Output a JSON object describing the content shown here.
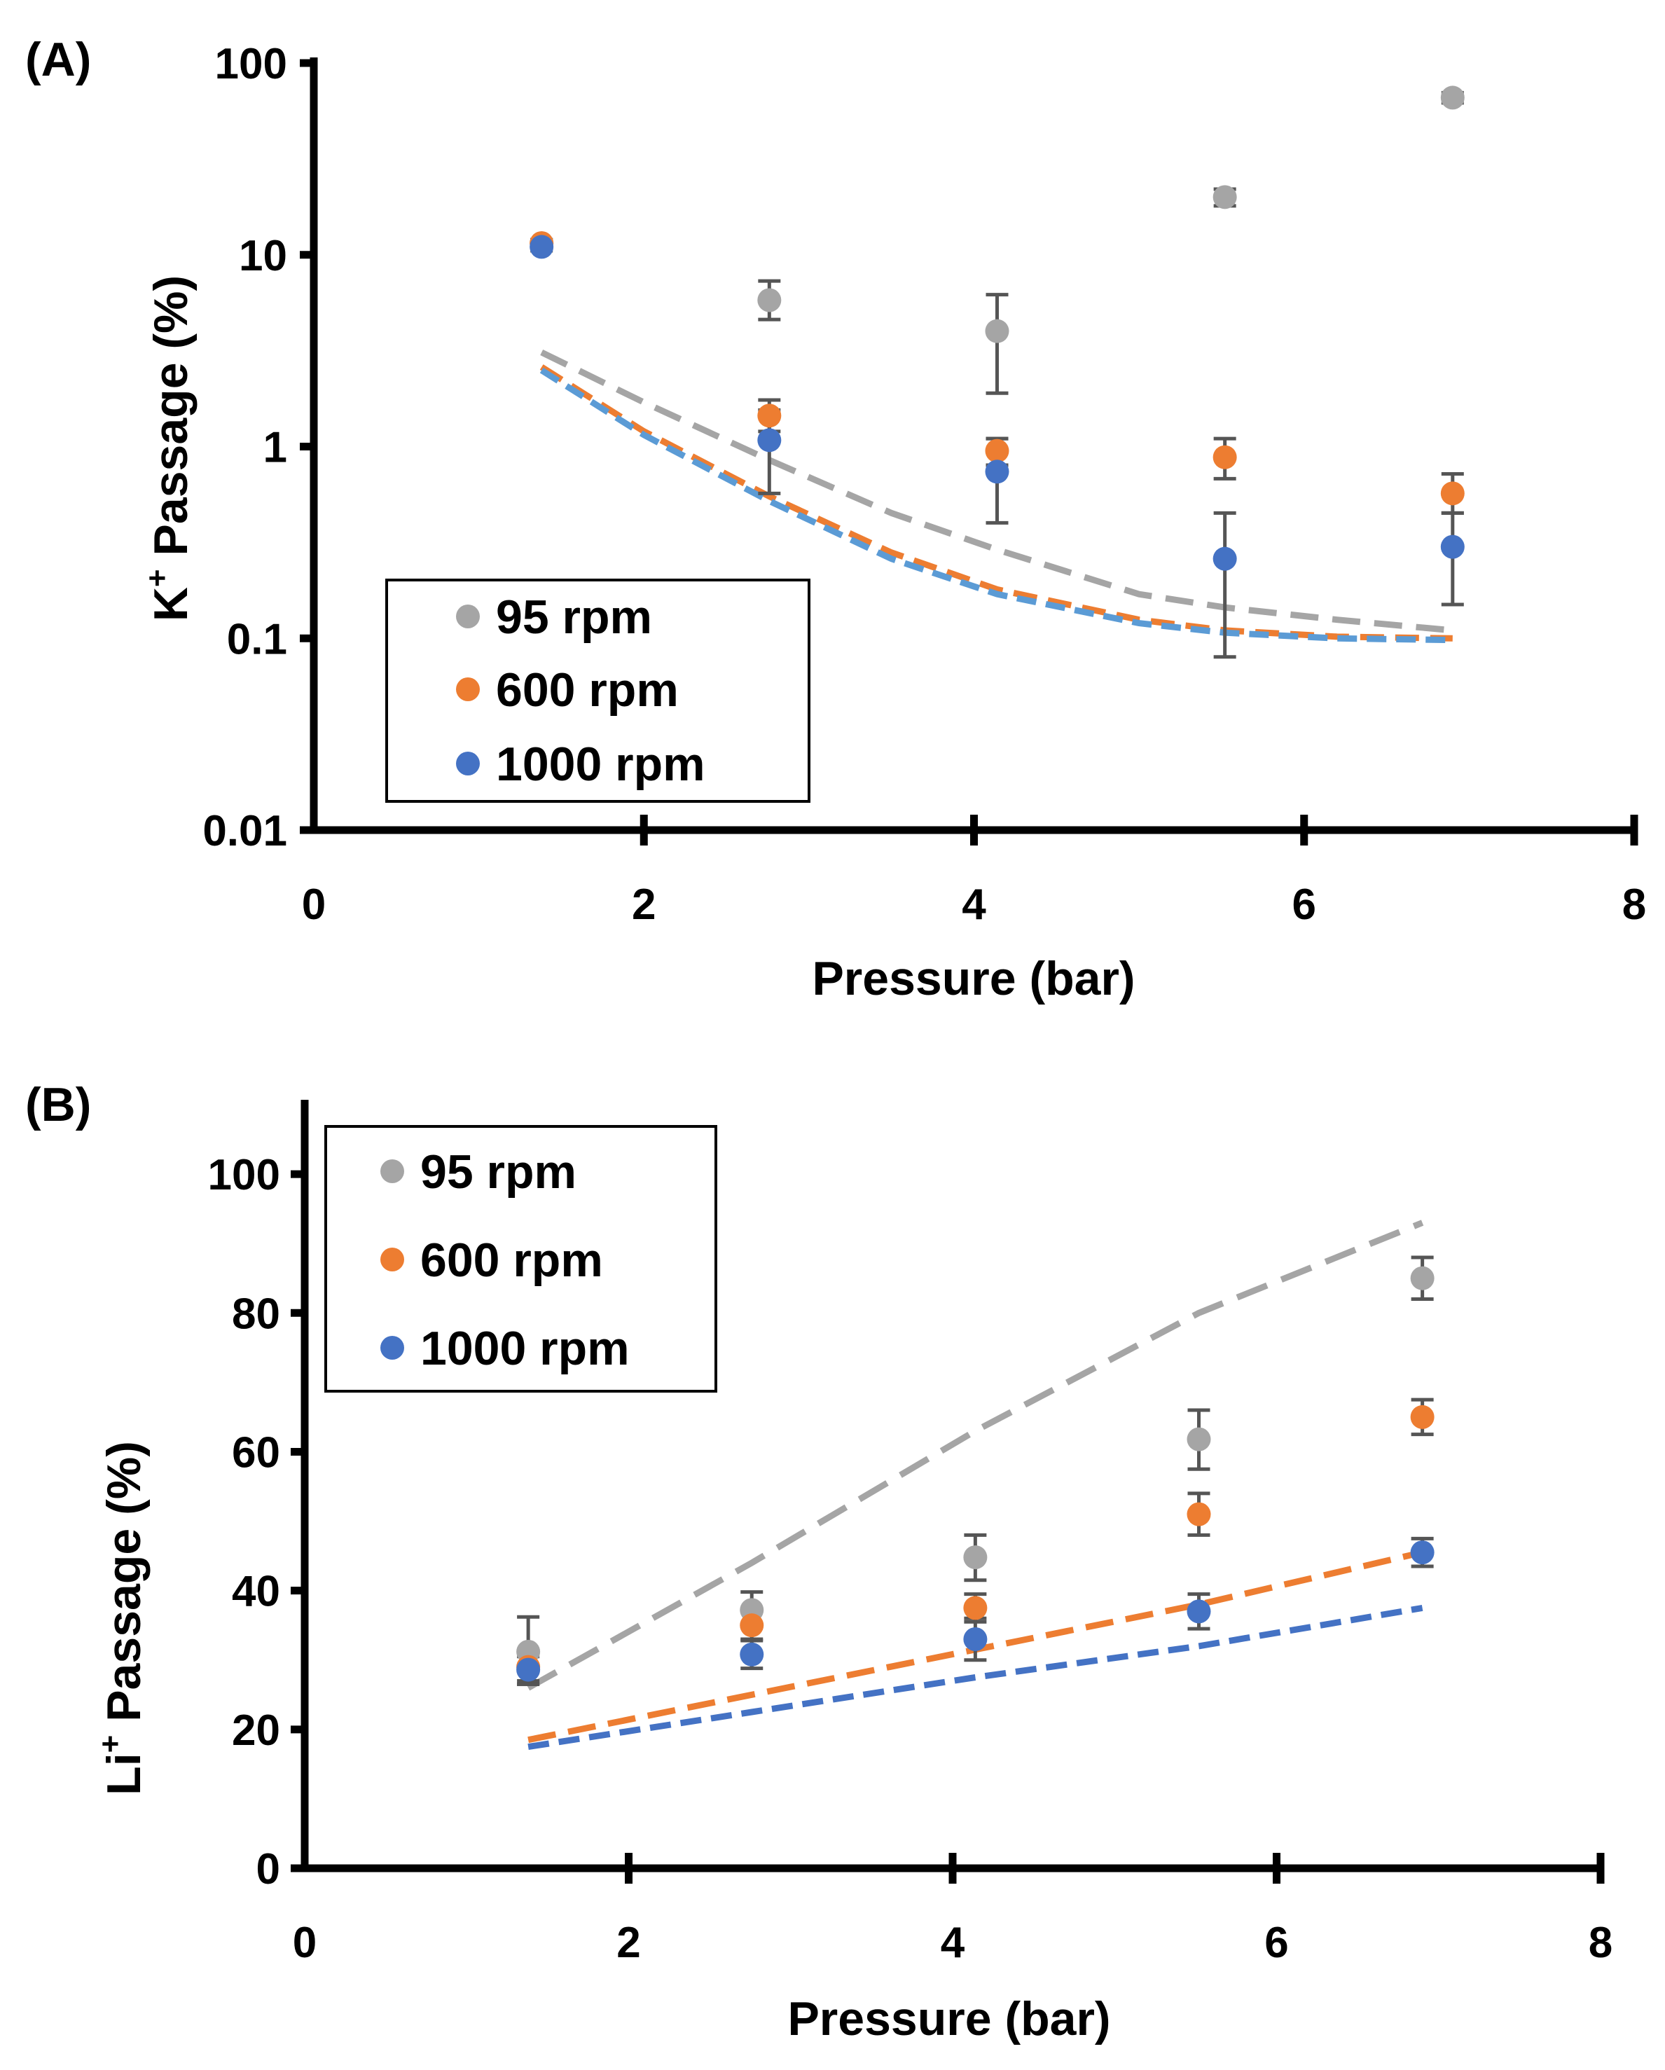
{
  "colors": {
    "gray": "#A5A5A5",
    "orange": "#ED7D31",
    "blue": "#4472C4",
    "light_blue": "#5B9BD5",
    "axis": "#000000",
    "errorbar": "#555555"
  },
  "chart_data": [
    {
      "panel_label": "(A)",
      "type": "scatter",
      "xlabel": "Pressure (bar)",
      "ylabel_main": "K",
      "ylabel_sup": "+",
      "ylabel_rest": " Passage (%)",
      "yscale": "log",
      "xlim": [
        0,
        8
      ],
      "ylim": [
        0.01,
        100
      ],
      "xticks": [
        0,
        2,
        4,
        6,
        8
      ],
      "xtick_labels": [
        "0",
        "2",
        "4",
        "6",
        "8"
      ],
      "yticks": [
        0.01,
        0.1,
        1,
        10,
        100
      ],
      "ytick_labels": [
        "0.01",
        "0.1",
        "1",
        "10",
        "100"
      ],
      "legend_location": "lower-left",
      "legend_labels": [
        "95 rpm",
        "600 rpm",
        "1000 rpm"
      ],
      "series": [
        {
          "name": "95 rpm",
          "color_key": "gray",
          "x": [
            1.38,
            2.76,
            4.14,
            5.52,
            6.9
          ],
          "y": [
            11.5,
            5.8,
            4.0,
            20.0,
            66.0
          ],
          "err_low": [
            11.0,
            4.6,
            1.9,
            18.0,
            62.0
          ],
          "err_high": [
            12.0,
            7.3,
            6.2,
            22.0,
            70.0
          ]
        },
        {
          "name": "600 rpm",
          "color_key": "orange",
          "x": [
            1.38,
            2.76,
            4.14,
            5.52,
            6.9
          ],
          "y": [
            11.5,
            1.45,
            0.95,
            0.88,
            0.57
          ],
          "err_low": [
            11.0,
            1.2,
            0.8,
            0.68,
            0.45
          ],
          "err_high": [
            12.0,
            1.75,
            1.1,
            1.1,
            0.72
          ]
        },
        {
          "name": "1000 rpm",
          "color_key": "blue",
          "x": [
            1.38,
            2.76,
            4.14,
            5.52,
            6.9
          ],
          "y": [
            11.0,
            1.08,
            0.74,
            0.26,
            0.3
          ],
          "err_low": [
            10.5,
            0.57,
            0.4,
            0.08,
            0.15
          ],
          "err_high": [
            11.5,
            1.55,
            1.1,
            0.45,
            0.45
          ]
        }
      ],
      "model_lines": [
        {
          "name": "95 rpm model",
          "color_key": "gray",
          "dash": "40 20",
          "x": [
            1.38,
            2.0,
            2.76,
            3.5,
            4.14,
            5.0,
            5.52,
            6.2,
            6.9
          ],
          "y": [
            3.1,
            1.7,
            0.85,
            0.45,
            0.29,
            0.17,
            0.145,
            0.125,
            0.11
          ]
        },
        {
          "name": "600 rpm model",
          "color_key": "orange",
          "dash": "34 16",
          "x": [
            1.38,
            2.0,
            2.76,
            3.5,
            4.14,
            5.0,
            5.52,
            6.2,
            6.9
          ],
          "y": [
            2.6,
            1.2,
            0.55,
            0.28,
            0.18,
            0.125,
            0.11,
            0.102,
            0.1
          ]
        },
        {
          "name": "1000 rpm model",
          "color_key": "light_blue",
          "dash": "28 14",
          "x": [
            1.38,
            2.0,
            2.76,
            3.5,
            4.14,
            5.0,
            5.52,
            6.2,
            6.9
          ],
          "y": [
            2.5,
            1.15,
            0.52,
            0.26,
            0.17,
            0.12,
            0.107,
            0.1,
            0.098
          ]
        }
      ]
    },
    {
      "panel_label": "(B)",
      "type": "scatter",
      "xlabel": "Pressure (bar)",
      "ylabel_main": "Li",
      "ylabel_sup": "+",
      "ylabel_rest": " Passage (%)",
      "yscale": "linear",
      "xlim": [
        0,
        8
      ],
      "ylim": [
        0,
        110
      ],
      "xticks": [
        0,
        2,
        4,
        6,
        8
      ],
      "xtick_labels": [
        "0",
        "2",
        "4",
        "6",
        "8"
      ],
      "yticks": [
        0,
        20,
        40,
        60,
        80,
        100
      ],
      "ytick_labels": [
        "0",
        "20",
        "40",
        "60",
        "80",
        "100"
      ],
      "legend_location": "upper-left",
      "legend_labels": [
        "95 rpm",
        "600 rpm",
        "1000 rpm"
      ],
      "series": [
        {
          "name": "95 rpm",
          "color_key": "gray",
          "x": [
            1.38,
            2.76,
            4.14,
            5.52,
            6.9
          ],
          "y": [
            31.2,
            37.2,
            44.8,
            61.8,
            85.0
          ],
          "err_low": [
            26.5,
            35.0,
            41.5,
            57.5,
            82.0
          ],
          "err_high": [
            36.2,
            39.8,
            48.0,
            66.0,
            88.0
          ]
        },
        {
          "name": "600 rpm",
          "color_key": "orange",
          "x": [
            1.38,
            2.76,
            4.14,
            5.52,
            6.9
          ],
          "y": [
            29.0,
            35.0,
            37.5,
            51.0,
            65.0
          ],
          "err_low": [
            27.0,
            33.0,
            35.5,
            48.0,
            62.5
          ],
          "err_high": [
            31.0,
            37.0,
            39.5,
            54.0,
            67.5
          ]
        },
        {
          "name": "1000 rpm",
          "color_key": "blue",
          "x": [
            1.38,
            2.76,
            4.14,
            5.52,
            6.9
          ],
          "y": [
            28.6,
            30.8,
            33.0,
            37.0,
            45.5
          ],
          "err_low": [
            26.5,
            28.8,
            30.0,
            34.5,
            43.5
          ],
          "err_high": [
            30.5,
            32.8,
            36.0,
            39.5,
            47.5
          ]
        }
      ],
      "model_lines": [
        {
          "name": "95 rpm model",
          "color_key": "gray",
          "dash": "46 22",
          "x": [
            1.38,
            2.76,
            4.14,
            5.52,
            6.9
          ],
          "y": [
            26.0,
            44.0,
            63.0,
            80.0,
            93.0
          ]
        },
        {
          "name": "600 rpm model",
          "color_key": "orange",
          "dash": "40 18",
          "x": [
            1.38,
            2.76,
            4.14,
            5.52,
            6.9
          ],
          "y": [
            18.5,
            25.0,
            31.5,
            38.0,
            45.5
          ]
        },
        {
          "name": "1000 rpm model",
          "color_key": "blue",
          "dash": "30 14",
          "x": [
            1.38,
            2.76,
            4.14,
            5.52,
            6.9
          ],
          "y": [
            17.5,
            22.5,
            27.5,
            32.0,
            37.5
          ]
        }
      ]
    }
  ]
}
